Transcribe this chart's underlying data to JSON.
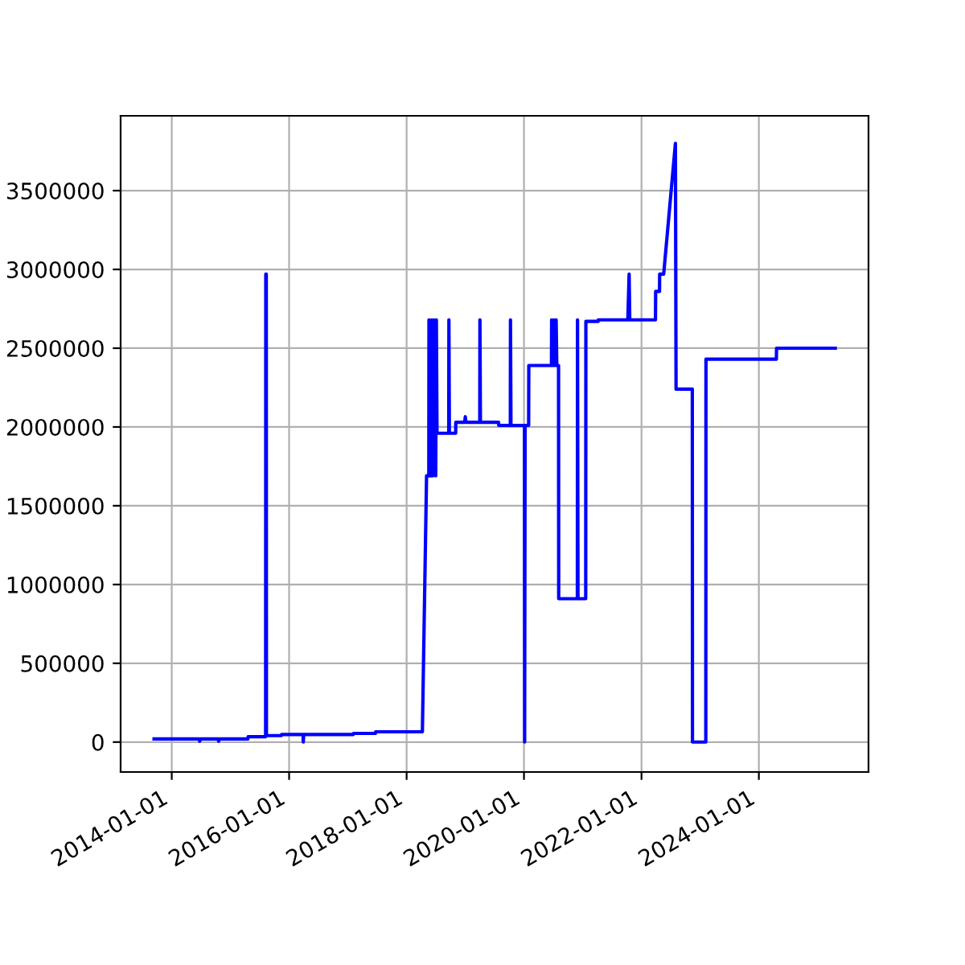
{
  "chart_data": {
    "type": "line",
    "x": [
      "2013-09-13",
      "2014-06-20",
      "2014-06-24",
      "2014-06-28",
      "2014-10-16",
      "2014-10-20",
      "2014-10-24",
      "2015-04-20",
      "2015-04-21",
      "2015-08-08",
      "2015-08-09",
      "2015-08-12",
      "2015-08-13",
      "2015-11-14",
      "2015-11-15",
      "2016-03-28",
      "2016-03-29",
      "2016-04-01",
      "2017-02-03",
      "2017-02-04",
      "2017-06-21",
      "2017-06-22",
      "2018-04-09",
      "2018-05-05",
      "2018-05-19",
      "2018-05-20",
      "2018-05-30",
      "2018-06-06",
      "2018-06-13",
      "2018-06-20",
      "2018-07-01",
      "2018-07-05",
      "2018-07-09",
      "2018-09-20",
      "2018-09-21",
      "2018-09-24",
      "2018-11-02",
      "2018-11-03",
      "2018-12-28",
      "2019-01-01",
      "2019-01-05",
      "2019-04-01",
      "2019-04-02",
      "2019-04-05",
      "2019-07-27",
      "2019-07-28",
      "2019-10-08",
      "2019-10-09",
      "2019-10-12",
      "2020-01-04",
      "2020-01-05",
      "2020-01-08",
      "2020-01-30",
      "2020-01-31",
      "2020-06-20",
      "2020-06-21",
      "2020-06-28",
      "2020-07-05",
      "2020-07-12",
      "2020-07-19",
      "2020-07-23",
      "2020-08-03",
      "2020-08-04",
      "2020-11-28",
      "2020-11-29",
      "2020-12-02",
      "2021-01-19",
      "2021-01-20",
      "2021-04-06",
      "2021-04-07",
      "2021-10-08",
      "2021-10-16",
      "2021-10-20",
      "2022-03-29",
      "2022-03-30",
      "2022-04-23",
      "2022-04-24",
      "2022-05-19",
      "2022-07-31",
      "2022-08-04",
      "2022-11-13",
      "2022-11-14",
      "2023-02-05",
      "2023-02-06",
      "2024-04-19",
      "2024-04-20",
      "2025-04-20"
    ],
    "series": [
      {
        "color": "#0000ff",
        "values": [
          20000,
          20000,
          5000,
          20000,
          20000,
          5000,
          20000,
          20000,
          34000,
          34000,
          2970000,
          2970000,
          41000,
          41000,
          48000,
          48000,
          0,
          48000,
          48000,
          55000,
          55000,
          65000,
          65000,
          1690000,
          1690000,
          2680000,
          1690000,
          2680000,
          1690000,
          2680000,
          1690000,
          2680000,
          1960000,
          1960000,
          2680000,
          1960000,
          1960000,
          2030000,
          2030000,
          2065000,
          2030000,
          2030000,
          2680000,
          2030000,
          2030000,
          2010000,
          2010000,
          2680000,
          2010000,
          2010000,
          0,
          2010000,
          2010000,
          2390000,
          2390000,
          2680000,
          2390000,
          2680000,
          2390000,
          2680000,
          2390000,
          2390000,
          910000,
          910000,
          2680000,
          910000,
          910000,
          2670000,
          2670000,
          2680000,
          2680000,
          2970000,
          2680000,
          2680000,
          2860000,
          2860000,
          2970000,
          2970000,
          3800000,
          2240000,
          2240000,
          0,
          0,
          2430000,
          2430000,
          2500000,
          2500000
        ]
      }
    ],
    "xlim": [
      "2013-02-17",
      "2025-11-13"
    ],
    "xticks": [
      {
        "value": "2014-01-01",
        "label": "2014-01-01"
      },
      {
        "value": "2016-01-01",
        "label": "2016-01-01"
      },
      {
        "value": "2018-01-01",
        "label": "2018-01-01"
      },
      {
        "value": "2020-01-01",
        "label": "2020-01-01"
      },
      {
        "value": "2022-01-01",
        "label": "2022-01-01"
      },
      {
        "value": "2024-01-01",
        "label": "2024-01-01"
      }
    ],
    "ylim": [
      -190000,
      3975000
    ],
    "yticks": [
      0,
      500000,
      1000000,
      1500000,
      2000000,
      2500000,
      3000000,
      3500000
    ],
    "grid": true
  }
}
